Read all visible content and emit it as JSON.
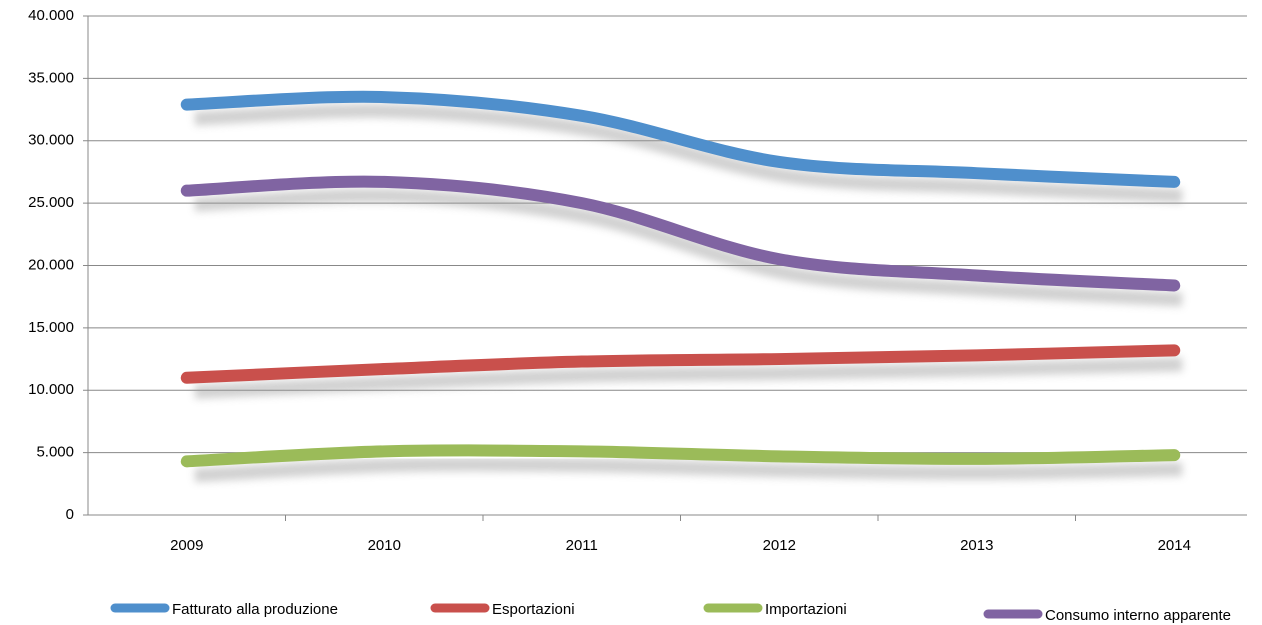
{
  "chart_data": {
    "type": "line",
    "categories": [
      "2009",
      "2010",
      "2011",
      "2012",
      "2013",
      "2014"
    ],
    "series": [
      {
        "name": "Fatturato alla produzione",
        "color": "#4f8fcc",
        "values": [
          32900,
          33500,
          32000,
          28300,
          27400,
          26700
        ]
      },
      {
        "name": "Esportazioni",
        "color": "#c9504c",
        "values": [
          11000,
          11700,
          12300,
          12500,
          12800,
          13200
        ]
      },
      {
        "name": "Importazioni",
        "color": "#9bbb59",
        "values": [
          4300,
          5100,
          5100,
          4700,
          4500,
          4800
        ]
      },
      {
        "name": "Consumo interno apparente",
        "color": "#8064a2",
        "values": [
          26000,
          26700,
          25000,
          20500,
          19200,
          18400
        ]
      }
    ],
    "ylim": [
      0,
      40000
    ],
    "yticks": [
      0,
      {
        "value": 5000,
        "label": "5.000"
      },
      {
        "value": 10000,
        "label": "10.000"
      },
      {
        "value": 15000,
        "label": "15.000"
      },
      {
        "value": 20000,
        "label": "20.000"
      },
      {
        "value": 25000,
        "label": "25.000"
      },
      {
        "value": 30000,
        "label": "30.000"
      },
      {
        "value": 35000,
        "label": "35.000"
      },
      {
        "value": 40000,
        "label": "40.000"
      }
    ],
    "grid": true,
    "smooth": true,
    "legend": "bottom"
  }
}
